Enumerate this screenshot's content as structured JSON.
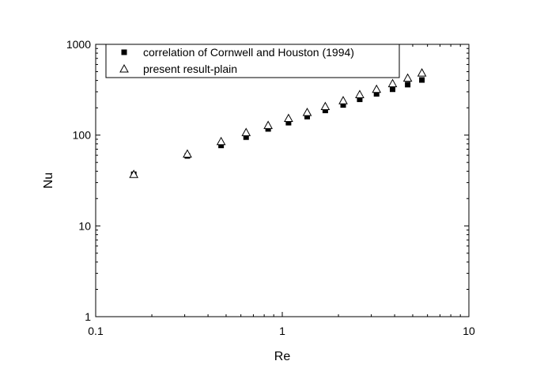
{
  "chart_data": {
    "type": "scatter",
    "xlabel": "Re",
    "ylabel": "Nu",
    "x_scale": "log",
    "y_scale": "log",
    "xlim": [
      0.1,
      10
    ],
    "ylim": [
      1,
      1000
    ],
    "x_ticks": [
      "0.1",
      "1",
      "10"
    ],
    "y_ticks": [
      "1",
      "10",
      "100",
      "1000"
    ],
    "grid": false,
    "legend_position": "top",
    "series": [
      {
        "name": "correlation of Cornwell and Houston (1994)",
        "marker": "filled-square",
        "color": "#000000",
        "points": [
          {
            "x": 0.16,
            "y": 37
          },
          {
            "x": 0.31,
            "y": 59
          },
          {
            "x": 0.47,
            "y": 77
          },
          {
            "x": 0.64,
            "y": 95
          },
          {
            "x": 0.84,
            "y": 117
          },
          {
            "x": 1.08,
            "y": 137
          },
          {
            "x": 1.36,
            "y": 160
          },
          {
            "x": 1.7,
            "y": 187
          },
          {
            "x": 2.12,
            "y": 215
          },
          {
            "x": 2.6,
            "y": 248
          },
          {
            "x": 3.2,
            "y": 285
          },
          {
            "x": 3.9,
            "y": 320
          },
          {
            "x": 4.7,
            "y": 360
          },
          {
            "x": 5.6,
            "y": 405
          }
        ]
      },
      {
        "name": "present result-plain",
        "marker": "open-triangle",
        "color": "#000000",
        "points": [
          {
            "x": 0.16,
            "y": 37
          },
          {
            "x": 0.31,
            "y": 62
          },
          {
            "x": 0.47,
            "y": 85
          },
          {
            "x": 0.64,
            "y": 107
          },
          {
            "x": 0.84,
            "y": 128
          },
          {
            "x": 1.08,
            "y": 153
          },
          {
            "x": 1.36,
            "y": 178
          },
          {
            "x": 1.7,
            "y": 207
          },
          {
            "x": 2.12,
            "y": 240
          },
          {
            "x": 2.6,
            "y": 280
          },
          {
            "x": 3.2,
            "y": 320
          },
          {
            "x": 3.9,
            "y": 370
          },
          {
            "x": 4.7,
            "y": 425
          },
          {
            "x": 5.6,
            "y": 485
          }
        ]
      }
    ]
  }
}
